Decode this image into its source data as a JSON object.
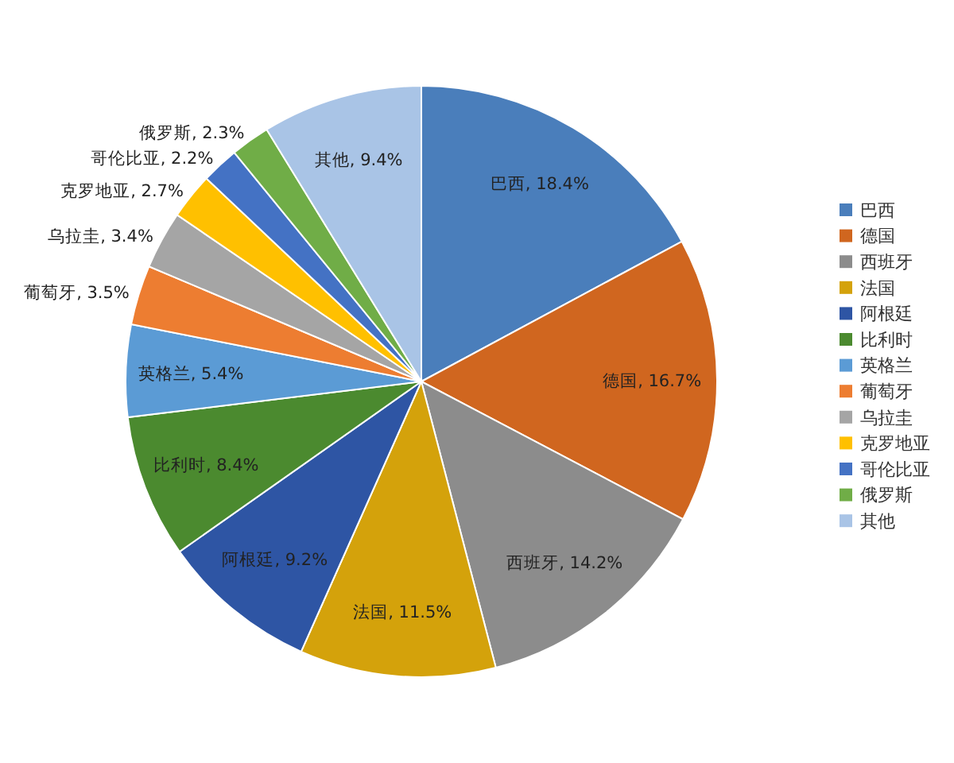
{
  "chart_data": {
    "type": "pie",
    "categories": [
      "巴西",
      "德国",
      "西班牙",
      "法国",
      "阿根廷",
      "比利时",
      "英格兰",
      "葡萄牙",
      "乌拉圭",
      "克罗地亚",
      "哥伦比亚",
      "俄罗斯",
      "其他"
    ],
    "values": [
      18.4,
      16.7,
      14.2,
      11.5,
      9.2,
      8.4,
      5.4,
      3.5,
      3.4,
      2.7,
      2.2,
      2.3,
      9.4
    ],
    "value_labels": [
      "巴西, 18.4%",
      "德国, 16.7%",
      "西班牙, 14.2%",
      "法国, 11.5%",
      "阿根廷, 9.2%",
      "比利时, 8.4%",
      "英格兰, 5.4%",
      "葡萄牙, 3.5%",
      "乌拉圭, 3.4%",
      "克罗地亚, 2.7%",
      "哥伦比亚, 2.2%",
      "俄罗斯, 2.3%",
      "其他, 9.4%"
    ],
    "colors": [
      "#4a7ebb",
      "#d0661f",
      "#8c8c8c",
      "#d4a20b",
      "#2e55a4",
      "#4b8a2f",
      "#5b9bd5",
      "#ed7d31",
      "#a5a5a5",
      "#ffc000",
      "#4472c4",
      "#70ad47",
      "#a9c4e6"
    ],
    "legend": "right"
  }
}
